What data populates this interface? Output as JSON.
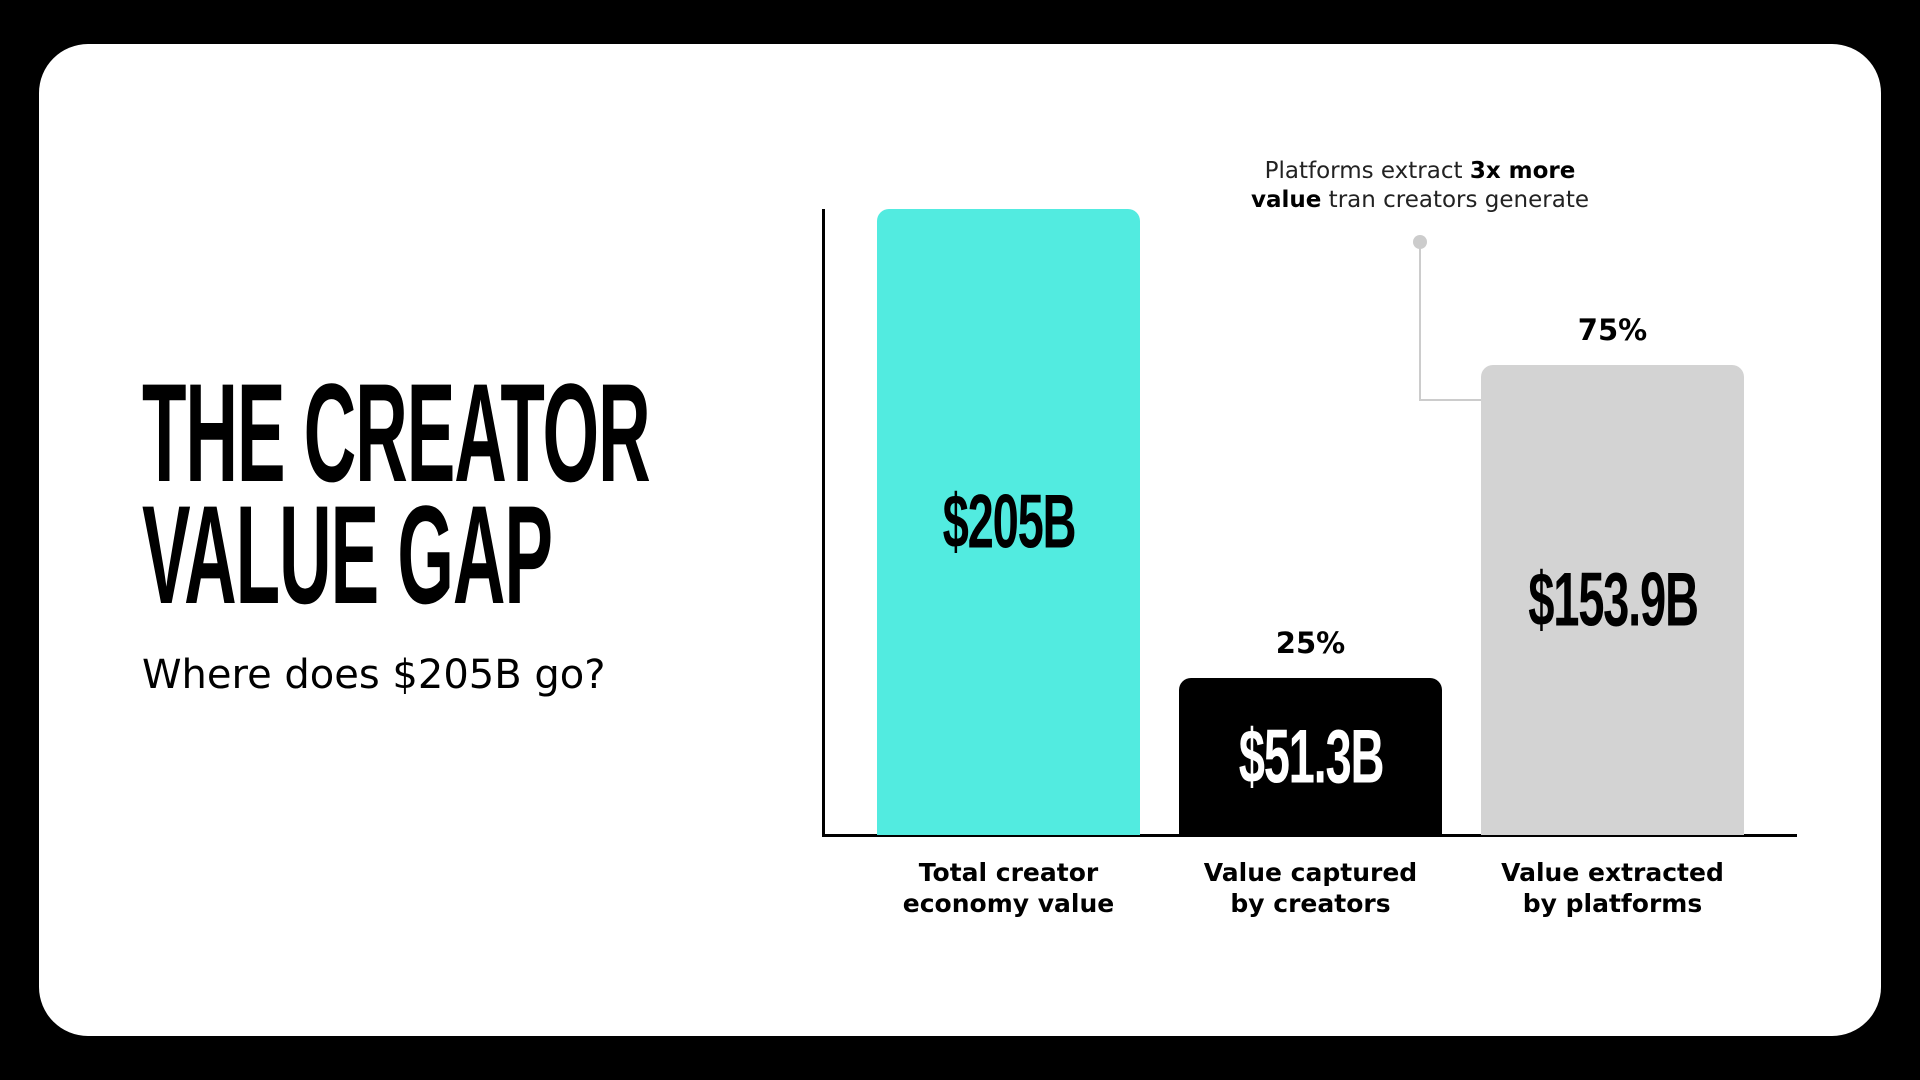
{
  "chart_data": {
    "type": "bar",
    "title": "THE CREATOR VALUE GAP",
    "subtitle": "Where does $205B go?",
    "categories": [
      "Total creator economy value",
      "Value captured by creators",
      "Value extracted by platforms"
    ],
    "values": [
      205,
      51.3,
      153.9
    ],
    "value_labels": [
      "$205B",
      "$51.3B",
      "$153.9B"
    ],
    "share_labels": [
      null,
      "25%",
      "75%"
    ],
    "colors": [
      "#52ebe0",
      "#000000",
      "#d3d3d3"
    ],
    "value_label_colors": [
      "#000000",
      "#ffffff",
      "#000000"
    ],
    "annotation": [
      "Platforms extract",
      "3x more",
      "value",
      "tran creators generate"
    ]
  }
}
